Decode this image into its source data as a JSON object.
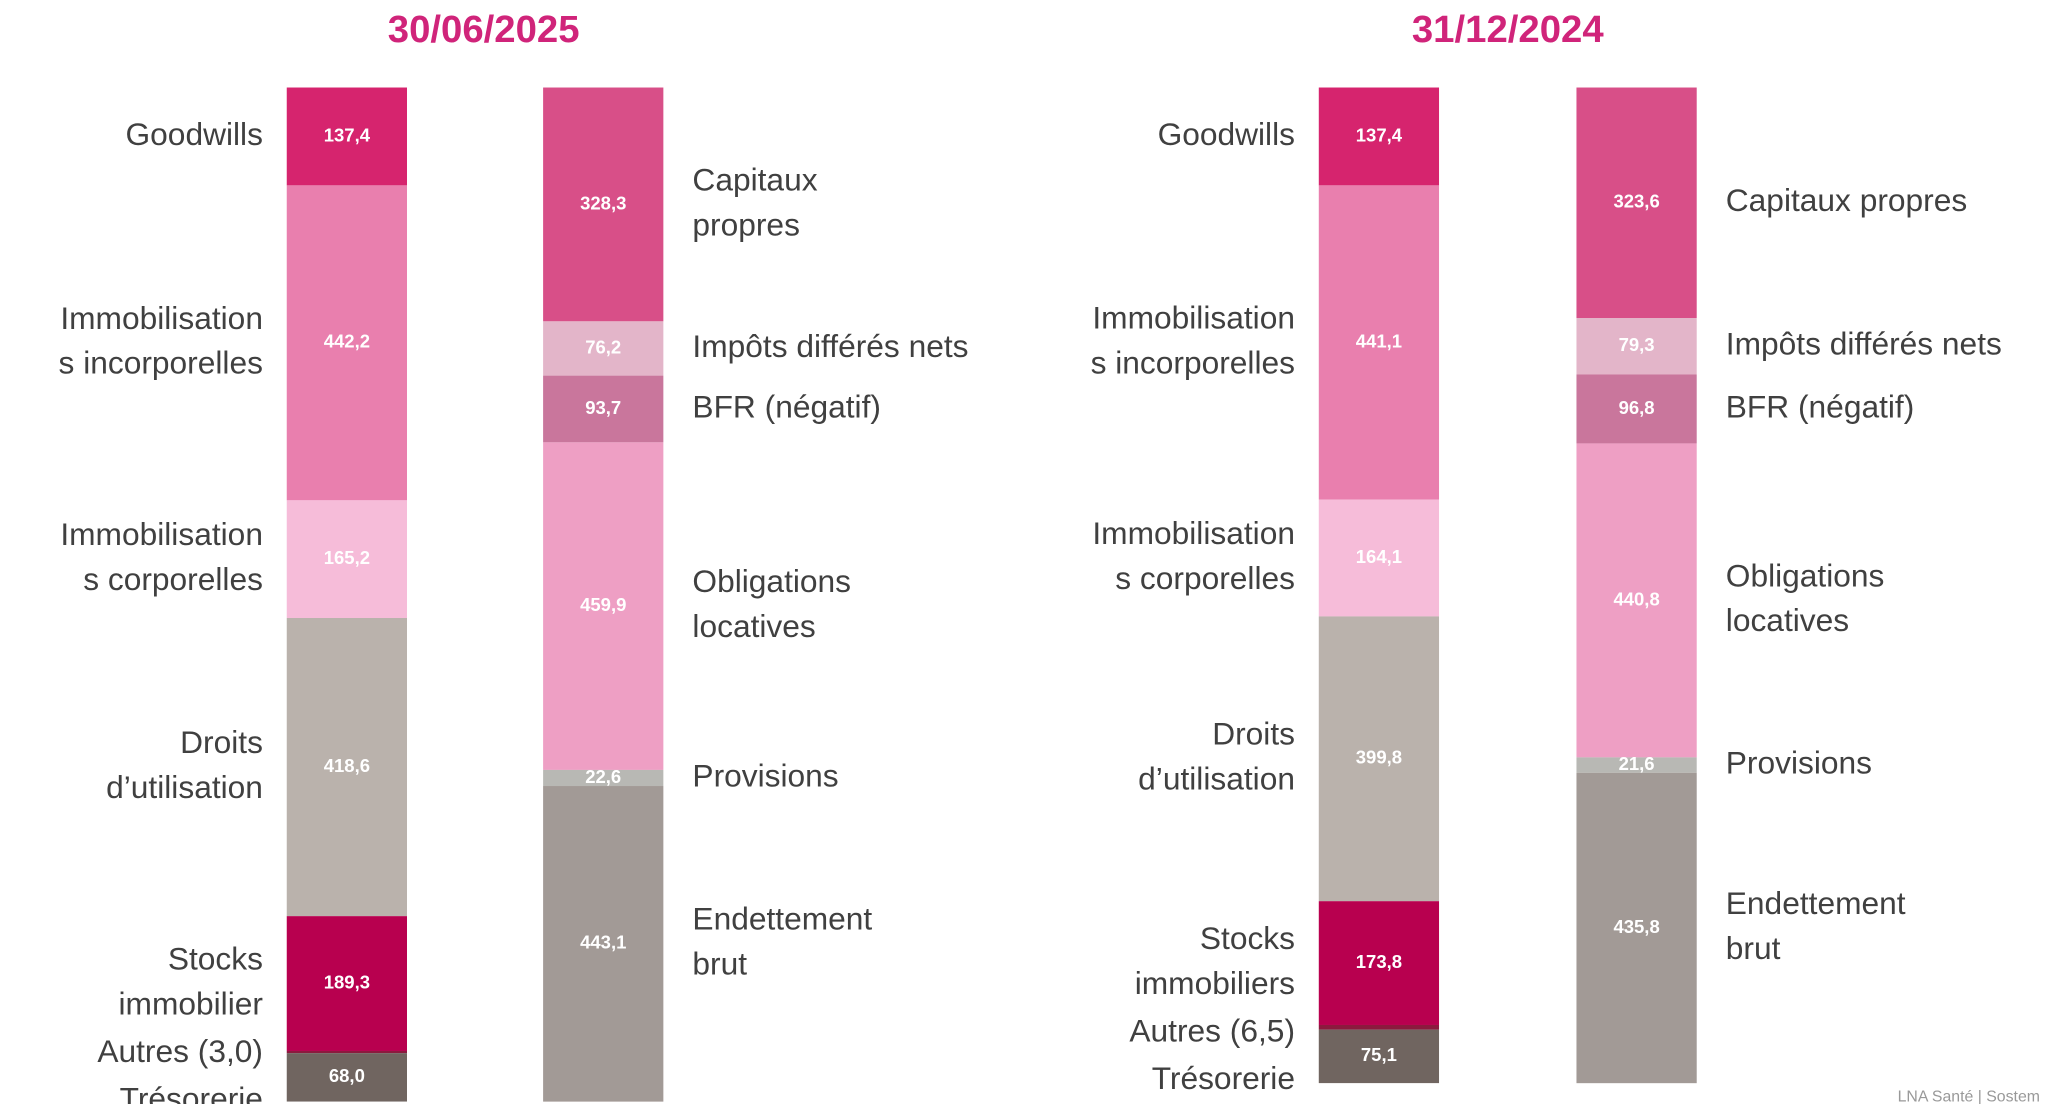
{
  "chart_data": [
    {
      "type": "stacked_bar",
      "title": "30/06/2025",
      "bars": [
        {
          "side": "left",
          "segments": [
            {
              "name": [
                "Goodwills"
              ],
              "value": 137.4,
              "value_label": "137,4",
              "color": "#d6246e"
            },
            {
              "name": [
                "Immobilisation",
                "s incorporelles"
              ],
              "value": 442.2,
              "value_label": "442,2",
              "color": "#e97fae"
            },
            {
              "name": [
                "Immobilisation",
                "s corporelles"
              ],
              "value": 165.2,
              "value_label": "165,2",
              "color": "#f6bcd9"
            },
            {
              "name": [
                "Droits",
                "d’utilisation"
              ],
              "value": 418.6,
              "value_label": "418,6",
              "color": "#bab2ac"
            },
            {
              "name": [
                "Stocks",
                "immobilier"
              ],
              "value": 189.3,
              "value_label": "189,3",
              "color": "#b8004f"
            },
            {
              "name": [
                "Autres (3,0)"
              ],
              "value": 3.0,
              "value_label": null,
              "color": "#8b1a3e"
            },
            {
              "name": [
                "Trésorerie"
              ],
              "value": 68.0,
              "value_label": "68,0",
              "color": "#706560"
            }
          ]
        },
        {
          "side": "right",
          "segments": [
            {
              "name": [
                "Capitaux",
                "propres"
              ],
              "value": 328.3,
              "value_label": "328,3",
              "color": "#d84f88"
            },
            {
              "name": [
                "Impôts différés nets"
              ],
              "value": 76.2,
              "value_label": "76,2",
              "color": "#e3b5c9"
            },
            {
              "name": [
                "BFR (négatif)"
              ],
              "value": 93.7,
              "value_label": "93,7",
              "color": "#c9769c"
            },
            {
              "name": [
                "Obligations",
                "locatives"
              ],
              "value": 459.9,
              "value_label": "459,9",
              "color": "#ee9fc4"
            },
            {
              "name": [
                "Provisions"
              ],
              "value": 22.6,
              "value_label": "22,6",
              "color": "#b8b8b4"
            },
            {
              "name": [
                "Endettement",
                "brut"
              ],
              "value": 443.1,
              "value_label": "443,1",
              "color": "#a29a96"
            }
          ]
        }
      ]
    },
    {
      "type": "stacked_bar",
      "title": "31/12/2024",
      "bars": [
        {
          "side": "left",
          "segments": [
            {
              "name": [
                "Goodwills"
              ],
              "value": 137.4,
              "value_label": "137,4",
              "color": "#d6246e"
            },
            {
              "name": [
                "Immobilisation",
                "s incorporelles"
              ],
              "value": 441.1,
              "value_label": "441,1",
              "color": "#e97fae"
            },
            {
              "name": [
                "Immobilisation",
                "s corporelles"
              ],
              "value": 164.1,
              "value_label": "164,1",
              "color": "#f6bcd9"
            },
            {
              "name": [
                "Droits",
                "d’utilisation"
              ],
              "value": 399.8,
              "value_label": "399,8",
              "color": "#bab2ac"
            },
            {
              "name": [
                "Stocks",
                "immobiliers"
              ],
              "value": 173.8,
              "value_label": "173,8",
              "color": "#b8004f"
            },
            {
              "name": [
                "Autres (6,5)"
              ],
              "value": 6.5,
              "value_label": null,
              "color": "#8b1a3e"
            },
            {
              "name": [
                "Trésorerie"
              ],
              "value": 75.1,
              "value_label": "75,1",
              "color": "#706560"
            }
          ]
        },
        {
          "side": "right",
          "segments": [
            {
              "name": [
                "Capitaux propres"
              ],
              "value": 323.6,
              "value_label": "323,6",
              "color": "#d84f88"
            },
            {
              "name": [
                "Impôts différés nets"
              ],
              "value": 79.3,
              "value_label": "79,3",
              "color": "#e3b5c9"
            },
            {
              "name": [
                "BFR (négatif)"
              ],
              "value": 96.8,
              "value_label": "96,8",
              "color": "#c9769c"
            },
            {
              "name": [
                "Obligations",
                "locatives"
              ],
              "value": 440.8,
              "value_label": "440,8",
              "color": "#ee9fc4"
            },
            {
              "name": [
                "Provisions"
              ],
              "value": 21.6,
              "value_label": "21,6",
              "color": "#b8b8b4"
            },
            {
              "name": [
                "Endettement",
                "brut"
              ],
              "value": 435.8,
              "value_label": "435,8",
              "color": "#a29a96"
            }
          ]
        }
      ]
    }
  ],
  "footer": "LNA Santé | Sostem"
}
